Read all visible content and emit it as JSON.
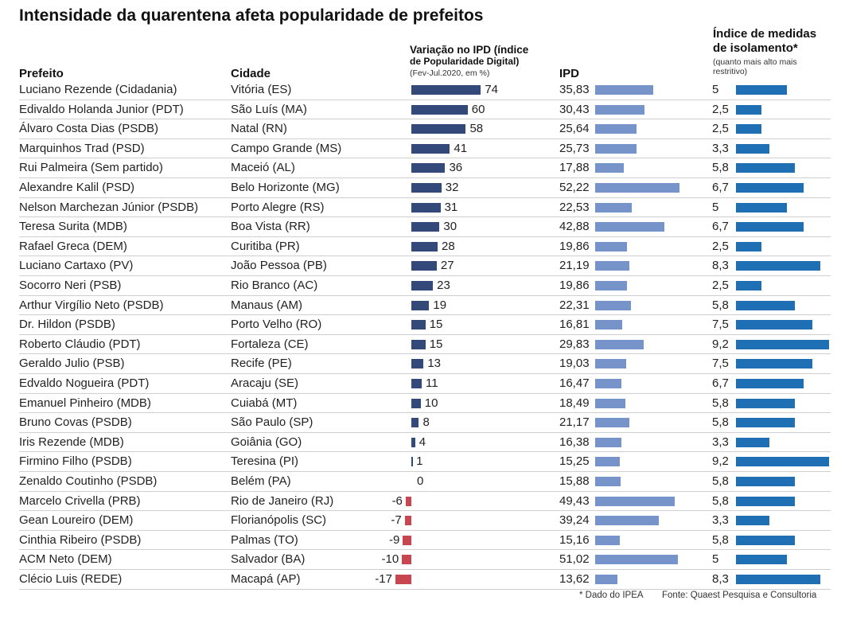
{
  "title": "Intensidade da quarentena afeta popularidade de prefeitos",
  "headers": {
    "prefeito": "Prefeito",
    "cidade": "Cidade",
    "variacao_line1": "Variação no IPD (índice",
    "variacao_line2": "de Popularidade Digital)",
    "variacao_sub": "(Fev-Jul.2020, em %)",
    "ipd": "IPD",
    "isolamento_line1": "Índice de medidas",
    "isolamento_line2": "de isolamento*",
    "isolamento_sub1": "(quanto mais alto mais",
    "isolamento_sub2": "restritivo)"
  },
  "footnote_ipea": "* Dado do IPEA",
  "source": "Fonte: Quaest Pesquisa e Consultoria",
  "colors": {
    "positive_bar": "#33497a",
    "negative_bar": "#c8464f",
    "ipd_bar": "#7694c9",
    "isolamento_bar": "#1f6fb5"
  },
  "chart_data": {
    "type": "table",
    "series": [
      {
        "name": "Variação no IPD",
        "unit": "%"
      },
      {
        "name": "IPD"
      },
      {
        "name": "Índice de medidas de isolamento"
      }
    ],
    "rows": [
      {
        "prefeito": "Luciano Rezende (Cidadania)",
        "cidade": "Vitória (ES)",
        "variacao": 74,
        "ipd": "35,83",
        "ipd_value": 35.83,
        "isolamento": "5",
        "isolamento_value": 5.0
      },
      {
        "prefeito": "Edivaldo Holanda Junior (PDT)",
        "cidade": "São Luís (MA)",
        "variacao": 60,
        "ipd": "30,43",
        "ipd_value": 30.43,
        "isolamento": "2,5",
        "isolamento_value": 2.5
      },
      {
        "prefeito": "Álvaro Costa Dias (PSDB)",
        "cidade": "Natal (RN)",
        "variacao": 58,
        "ipd": "25,64",
        "ipd_value": 25.64,
        "isolamento": "2,5",
        "isolamento_value": 2.5
      },
      {
        "prefeito": "Marquinhos Trad (PSD)",
        "cidade": "Campo Grande (MS)",
        "variacao": 41,
        "ipd": "25,73",
        "ipd_value": 25.73,
        "isolamento": "3,3",
        "isolamento_value": 3.3
      },
      {
        "prefeito": "Rui Palmeira (Sem partido)",
        "cidade": "Maceió (AL)",
        "variacao": 36,
        "ipd": "17,88",
        "ipd_value": 17.88,
        "isolamento": "5,8",
        "isolamento_value": 5.8
      },
      {
        "prefeito": "Alexandre Kalil (PSD)",
        "cidade": "Belo Horizonte (MG)",
        "variacao": 32,
        "ipd": "52,22",
        "ipd_value": 52.22,
        "isolamento": "6,7",
        "isolamento_value": 6.7
      },
      {
        "prefeito": "Nelson Marchezan Júnior (PSDB)",
        "cidade": "Porto Alegre (RS)",
        "variacao": 31,
        "ipd": "22,53",
        "ipd_value": 22.53,
        "isolamento": "5",
        "isolamento_value": 5.0
      },
      {
        "prefeito": "Teresa Surita (MDB)",
        "cidade": "Boa Vista (RR)",
        "variacao": 30,
        "ipd": "42,88",
        "ipd_value": 42.88,
        "isolamento": "6,7",
        "isolamento_value": 6.7
      },
      {
        "prefeito": "Rafael Greca (DEM)",
        "cidade": "Curitiba (PR)",
        "variacao": 28,
        "ipd": "19,86",
        "ipd_value": 19.86,
        "isolamento": "2,5",
        "isolamento_value": 2.5
      },
      {
        "prefeito": "Luciano Cartaxo (PV)",
        "cidade": "João Pessoa (PB)",
        "variacao": 27,
        "ipd": "21,19",
        "ipd_value": 21.19,
        "isolamento": "8,3",
        "isolamento_value": 8.3
      },
      {
        "prefeito": "Socorro Neri (PSB)",
        "cidade": "Rio Branco (AC)",
        "variacao": 23,
        "ipd": "19,86",
        "ipd_value": 19.86,
        "isolamento": "2,5",
        "isolamento_value": 2.5
      },
      {
        "prefeito": "Arthur Virgílio Neto (PSDB)",
        "cidade": "Manaus (AM)",
        "variacao": 19,
        "ipd": "22,31",
        "ipd_value": 22.31,
        "isolamento": "5,8",
        "isolamento_value": 5.8
      },
      {
        "prefeito": "Dr. Hildon (PSDB)",
        "cidade": "Porto Velho (RO)",
        "variacao": 15,
        "ipd": "16,81",
        "ipd_value": 16.81,
        "isolamento": "7,5",
        "isolamento_value": 7.5
      },
      {
        "prefeito": "Roberto Cláudio (PDT)",
        "cidade": "Fortaleza (CE)",
        "variacao": 15,
        "ipd": "29,83",
        "ipd_value": 29.83,
        "isolamento": "9,2",
        "isolamento_value": 9.2
      },
      {
        "prefeito": "Geraldo Julio (PSB)",
        "cidade": "Recife (PE)",
        "variacao": 13,
        "ipd": "19,03",
        "ipd_value": 19.03,
        "isolamento": "7,5",
        "isolamento_value": 7.5
      },
      {
        "prefeito": "Edvaldo Nogueira (PDT)",
        "cidade": "Aracaju (SE)",
        "variacao": 11,
        "ipd": "16,47",
        "ipd_value": 16.47,
        "isolamento": "6,7",
        "isolamento_value": 6.7
      },
      {
        "prefeito": "Emanuel Pinheiro (MDB)",
        "cidade": "Cuiabá (MT)",
        "variacao": 10,
        "ipd": "18,49",
        "ipd_value": 18.49,
        "isolamento": "5,8",
        "isolamento_value": 5.8
      },
      {
        "prefeito": "Bruno Covas (PSDB)",
        "cidade": "São Paulo (SP)",
        "variacao": 8,
        "ipd": "21,17",
        "ipd_value": 21.17,
        "isolamento": "5,8",
        "isolamento_value": 5.8
      },
      {
        "prefeito": "Iris Rezende (MDB)",
        "cidade": "Goiânia (GO)",
        "variacao": 4,
        "ipd": "16,38",
        "ipd_value": 16.38,
        "isolamento": "3,3",
        "isolamento_value": 3.3
      },
      {
        "prefeito": "Firmino Filho (PSDB)",
        "cidade": "Teresina (PI)",
        "variacao": 1,
        "ipd": "15,25",
        "ipd_value": 15.25,
        "isolamento": "9,2",
        "isolamento_value": 9.2
      },
      {
        "prefeito": "Zenaldo Coutinho (PSDB)",
        "cidade": "Belém (PA)",
        "variacao": 0,
        "ipd": "15,88",
        "ipd_value": 15.88,
        "isolamento": "5,8",
        "isolamento_value": 5.8
      },
      {
        "prefeito": "Marcelo Crivella (PRB)",
        "cidade": "Rio de Janeiro (RJ)",
        "variacao": -6,
        "ipd": "49,43",
        "ipd_value": 49.43,
        "isolamento": "5,8",
        "isolamento_value": 5.8
      },
      {
        "prefeito": "Gean Loureiro (DEM)",
        "cidade": "Florianópolis (SC)",
        "variacao": -7,
        "ipd": "39,24",
        "ipd_value": 39.24,
        "isolamento": "3,3",
        "isolamento_value": 3.3
      },
      {
        "prefeito": "Cinthia Ribeiro (PSDB)",
        "cidade": "Palmas (TO)",
        "variacao": -9,
        "ipd": "15,16",
        "ipd_value": 15.16,
        "isolamento": "5,8",
        "isolamento_value": 5.8
      },
      {
        "prefeito": "ACM Neto (DEM)",
        "cidade": "Salvador (BA)",
        "variacao": -10,
        "ipd": "51,02",
        "ipd_value": 51.02,
        "isolamento": "5",
        "isolamento_value": 5.0
      },
      {
        "prefeito": "Clécio Luis (REDE)",
        "cidade": "Macapá (AP)",
        "variacao": -17,
        "ipd": "13,62",
        "ipd_value": 13.62,
        "isolamento": "8,3",
        "isolamento_value": 8.3
      }
    ]
  }
}
